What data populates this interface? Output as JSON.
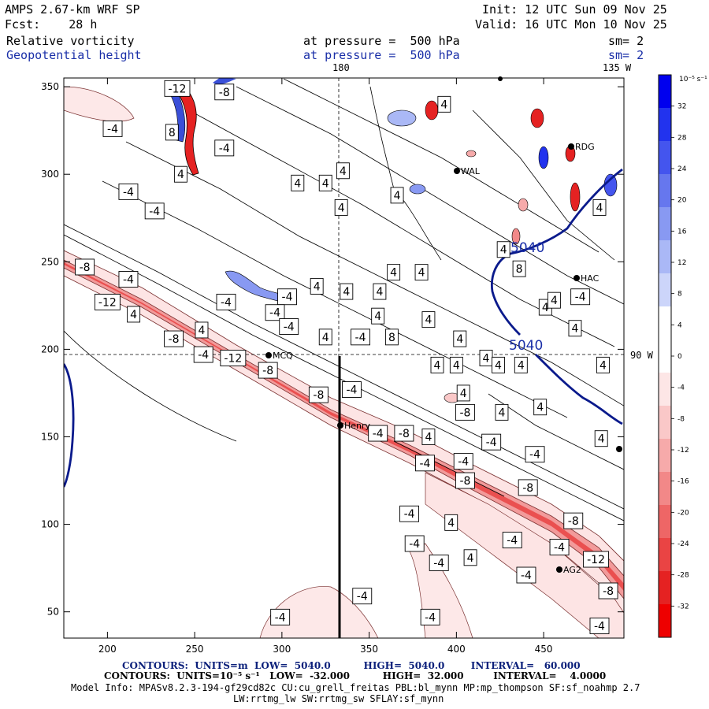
{
  "header": {
    "model": "AMPS 2.67-km WRF SP",
    "fcst": "Fcst:    28 h",
    "init": "Init: 12 UTC Sun 09 Nov 25",
    "valid": "Valid: 16 UTC Mon 10 Nov 25",
    "field1": "Relative vorticity",
    "field2": "Geopotential height",
    "press1": "at pressure =  500 hPa",
    "press2": "at pressure =  500 hPa",
    "sm1": "sm= 2",
    "sm2": "sm= 2"
  },
  "annotations": {
    "lon_180": "180",
    "lon_135w": "135 W",
    "lon_90w": "90 W"
  },
  "chart_data": {
    "type": "contour",
    "xlabel": "",
    "ylabel": "",
    "xlim": [
      175,
      496
    ],
    "ylim": [
      35,
      355
    ],
    "xticks": [
      "200",
      "250",
      "300",
      "350",
      "400",
      "450"
    ],
    "yticks": [
      "50",
      "100",
      "150",
      "200",
      "250",
      "300",
      "350"
    ],
    "colorbar": {
      "unit_label": "10⁻⁵ s⁻¹",
      "labels": [
        "32",
        "28",
        "24",
        "20",
        "16",
        "12",
        "8",
        "4",
        "0",
        "-4",
        "-8",
        "-12",
        "-16",
        "-20",
        "-24",
        "-28",
        "-32"
      ],
      "colors": [
        "#0000ee",
        "#2233ee",
        "#4455ee",
        "#6677ee",
        "#8899f2",
        "#aab8f6",
        "#ccd5fa",
        "#ffffff",
        "#ffffff",
        "#fde6e6",
        "#fac8c8",
        "#f6aaaa",
        "#f28888",
        "#ee6666",
        "#ea4444",
        "#e52222",
        "#ee0000"
      ]
    },
    "height_contour_label": "5040",
    "height_contour_labels": [
      "5040",
      "5040"
    ],
    "stations": [
      "MCQ",
      "Henry",
      "AG2",
      "HAC",
      "RDG",
      "WAL"
    ],
    "contour_labels": [
      {
        "x": 240,
        "y": 349,
        "t": "-12"
      },
      {
        "x": 267,
        "y": 347,
        "t": "-8"
      },
      {
        "x": 203,
        "y": 326,
        "t": "-4"
      },
      {
        "x": 237,
        "y": 324,
        "t": "8"
      },
      {
        "x": 267,
        "y": 315,
        "t": "-4"
      },
      {
        "x": 242,
        "y": 300,
        "t": "4"
      },
      {
        "x": 212,
        "y": 290,
        "t": "-4"
      },
      {
        "x": 227,
        "y": 279,
        "t": "-4"
      },
      {
        "x": 309,
        "y": 295,
        "t": "4"
      },
      {
        "x": 325,
        "y": 295,
        "t": "4"
      },
      {
        "x": 335,
        "y": 302,
        "t": "4"
      },
      {
        "x": 334,
        "y": 281,
        "t": "4"
      },
      {
        "x": 366,
        "y": 288,
        "t": "4"
      },
      {
        "x": 393,
        "y": 340,
        "t": "4"
      },
      {
        "x": 482,
        "y": 281,
        "t": "4"
      },
      {
        "x": 187,
        "y": 247,
        "t": "-8"
      },
      {
        "x": 212,
        "y": 240,
        "t": "-4"
      },
      {
        "x": 200,
        "y": 227,
        "t": "-12"
      },
      {
        "x": 215,
        "y": 220,
        "t": "4"
      },
      {
        "x": 268,
        "y": 227,
        "t": "-4"
      },
      {
        "x": 303,
        "y": 230,
        "t": "-4"
      },
      {
        "x": 296,
        "y": 221,
        "t": "-4"
      },
      {
        "x": 304,
        "y": 213,
        "t": "-4"
      },
      {
        "x": 320,
        "y": 236,
        "t": "4"
      },
      {
        "x": 337,
        "y": 233,
        "t": "4"
      },
      {
        "x": 356,
        "y": 233,
        "t": "4"
      },
      {
        "x": 364,
        "y": 244,
        "t": "4"
      },
      {
        "x": 380,
        "y": 244,
        "t": "4"
      },
      {
        "x": 355,
        "y": 219,
        "t": "4"
      },
      {
        "x": 325,
        "y": 207,
        "t": "4"
      },
      {
        "x": 345,
        "y": 207,
        "t": "-4"
      },
      {
        "x": 363,
        "y": 207,
        "t": "8"
      },
      {
        "x": 384,
        "y": 217,
        "t": "4"
      },
      {
        "x": 402,
        "y": 206,
        "t": "4"
      },
      {
        "x": 238,
        "y": 206,
        "t": "-8"
      },
      {
        "x": 254,
        "y": 211,
        "t": "4"
      },
      {
        "x": 255,
        "y": 197,
        "t": "-4"
      },
      {
        "x": 272,
        "y": 195,
        "t": "-12"
      },
      {
        "x": 292,
        "y": 188,
        "t": "-8"
      },
      {
        "x": 436,
        "y": 246,
        "t": "8"
      },
      {
        "x": 451,
        "y": 224,
        "t": "4"
      },
      {
        "x": 456,
        "y": 228,
        "t": "4"
      },
      {
        "x": 471,
        "y": 230,
        "t": "-4"
      },
      {
        "x": 468,
        "y": 212,
        "t": "4"
      },
      {
        "x": 427,
        "y": 257,
        "t": "4"
      },
      {
        "x": 389,
        "y": 191,
        "t": "4"
      },
      {
        "x": 400,
        "y": 191,
        "t": "4"
      },
      {
        "x": 417,
        "y": 195,
        "t": "4"
      },
      {
        "x": 424,
        "y": 191,
        "t": "4"
      },
      {
        "x": 437,
        "y": 191,
        "t": "4"
      },
      {
        "x": 484,
        "y": 191,
        "t": "4"
      },
      {
        "x": 404,
        "y": 175,
        "t": "4"
      },
      {
        "x": 405,
        "y": 164,
        "t": "-8"
      },
      {
        "x": 426,
        "y": 164,
        "t": "4"
      },
      {
        "x": 448,
        "y": 167,
        "t": "4"
      },
      {
        "x": 321,
        "y": 174,
        "t": "-8"
      },
      {
        "x": 340,
        "y": 177,
        "t": "-4"
      },
      {
        "x": 355,
        "y": 152,
        "t": "-4"
      },
      {
        "x": 370,
        "y": 152,
        "t": "-8"
      },
      {
        "x": 384,
        "y": 150,
        "t": "4"
      },
      {
        "x": 420,
        "y": 147,
        "t": "-4"
      },
      {
        "x": 445,
        "y": 140,
        "t": "-4"
      },
      {
        "x": 483,
        "y": 149,
        "t": "4"
      },
      {
        "x": 382,
        "y": 135,
        "t": "-4"
      },
      {
        "x": 404,
        "y": 136,
        "t": "-4"
      },
      {
        "x": 405,
        "y": 125,
        "t": "-8"
      },
      {
        "x": 441,
        "y": 121,
        "t": "-8"
      },
      {
        "x": 373,
        "y": 106,
        "t": "-4"
      },
      {
        "x": 376,
        "y": 89,
        "t": "-4"
      },
      {
        "x": 397,
        "y": 101,
        "t": "4"
      },
      {
        "x": 432,
        "y": 91,
        "t": "-4"
      },
      {
        "x": 467,
        "y": 102,
        "t": "-8"
      },
      {
        "x": 459,
        "y": 87,
        "t": "-4"
      },
      {
        "x": 390,
        "y": 78,
        "t": "-4"
      },
      {
        "x": 408,
        "y": 81,
        "t": "4"
      },
      {
        "x": 440,
        "y": 71,
        "t": "-4"
      },
      {
        "x": 480,
        "y": 80,
        "t": "-12"
      },
      {
        "x": 487,
        "y": 62,
        "t": "-8"
      },
      {
        "x": 346,
        "y": 59,
        "t": "-4"
      },
      {
        "x": 299,
        "y": 47,
        "t": "-4"
      },
      {
        "x": 385,
        "y": 47,
        "t": "-4"
      },
      {
        "x": 482,
        "y": 42,
        "t": "-4"
      }
    ]
  },
  "footer": {
    "line1": "CONTOURS:  UNITS=m  LOW=  5040.0          HIGH=  5040.0        INTERVAL=   60.000",
    "line2": "CONTOURS:  UNITS=10⁻⁵ s⁻¹   LOW=  -32.000          HIGH=  32.000         INTERVAL=    4.0000",
    "line3": "Model Info: MPASv8.2.3-194-gf29cd82c CU:cu_grell_freitas PBL:bl_mynn MP:mp_thompson SF:sf_noahmp 2.7",
    "line4": "LW:rrtmg_lw SW:rrtmg_sw SFLAY:sf_mynn"
  }
}
